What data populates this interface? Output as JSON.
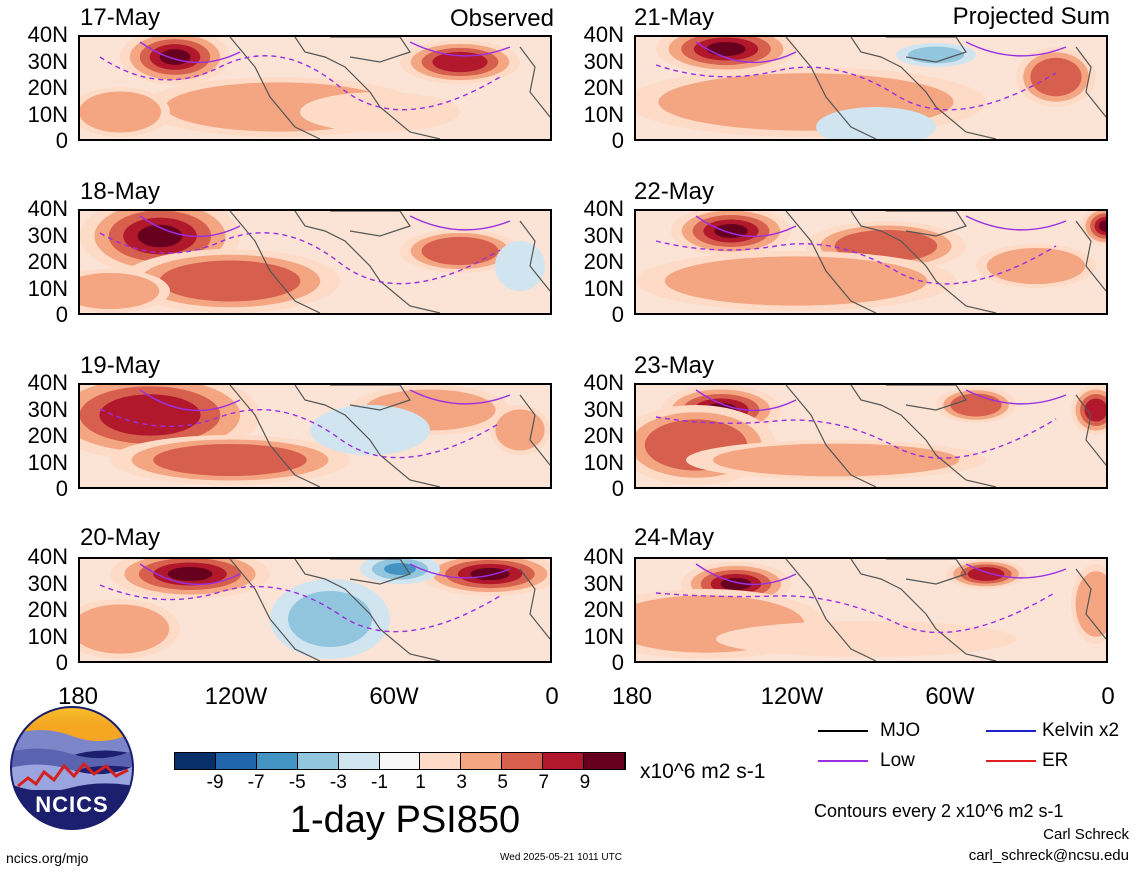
{
  "columns": [
    {
      "header": "Observed",
      "dates": [
        "17-May",
        "18-May",
        "19-May",
        "20-May"
      ]
    },
    {
      "header": "Projected Sum",
      "dates": [
        "21-May",
        "22-May",
        "23-May",
        "24-May"
      ]
    }
  ],
  "lat_labels": [
    "40N",
    "30N",
    "20N",
    "10N",
    "0"
  ],
  "lon_labels": [
    "180",
    "120W",
    "60W",
    "0"
  ],
  "colorbar": {
    "colors": [
      "#08306b",
      "#2166ac",
      "#4393c3",
      "#92c5de",
      "#d1e5f0",
      "#f7f7f7",
      "#fddbc7",
      "#f4a582",
      "#d6604d",
      "#b2182b",
      "#67001f"
    ],
    "labels": [
      "-9",
      "-7",
      "-5",
      "-3",
      "-1",
      "1",
      "3",
      "5",
      "7",
      "9"
    ],
    "units": "x10^6 m2 s-1"
  },
  "product_title": "1-day PSI850",
  "legend": {
    "items": [
      {
        "label": "MJO",
        "color": "#000000"
      },
      {
        "label": "Kelvin x2",
        "color": "#1f1fcc"
      },
      {
        "label": "Low",
        "color": "#9b30e0"
      },
      {
        "label": "ER",
        "color": "#e02020"
      }
    ]
  },
  "contour_note": "Contours every 2 x10^6 m2 s-1",
  "author": "Carl Schreck",
  "email": "carl_schreck@ncsu.edu",
  "site": "ncics.org/mjo",
  "timestamp": "Wed 2025-05-21 1011 UTC",
  "logo": {
    "text": "NCICS"
  }
}
